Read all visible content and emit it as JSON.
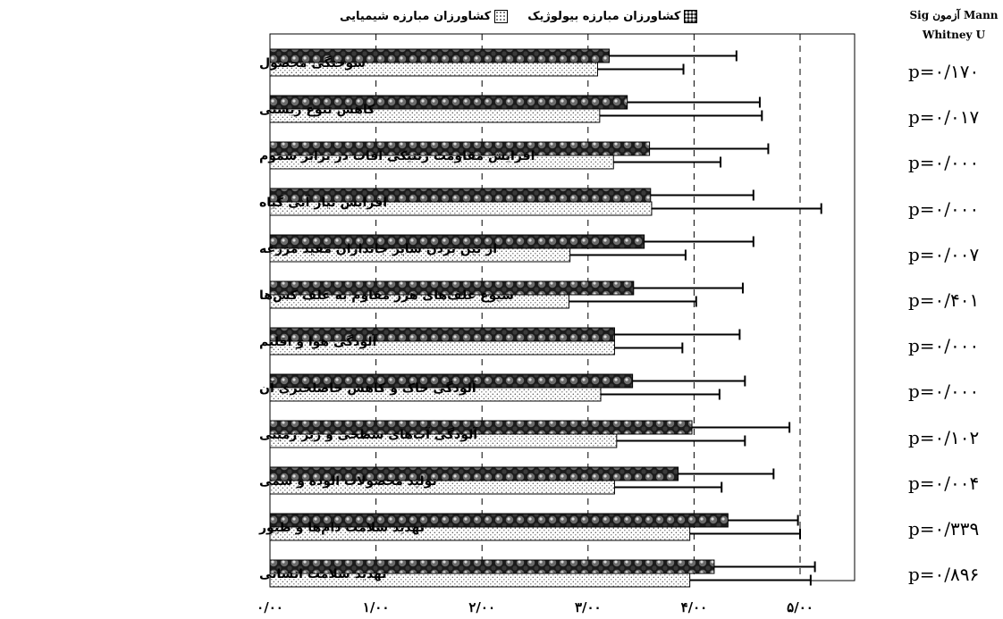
{
  "chart_data": {
    "type": "bar",
    "orientation": "horizontal",
    "categories": [
      "سوختگی محصول",
      "کاهش تنوع زیستی",
      "افزایش مقاومت ژنتیکی آفات در برابر سموم",
      "افزایش  نیاز آبی گیاه",
      "از بین بردن سایر جانداران مفید مزرعه",
      "شیوع علف‌های هرز مقاوم به علف کش‌ها",
      "آلودگی هوا و اقلیم",
      "آلودگی خاک و کاهش حاصلخیزی آن",
      "آلودگی آب‌های سطحی و زیر زمینی",
      "تولید محصولات الوده و سمی",
      "تهدید سلامت دام‌ها و طیور",
      "تهدید سلامت انسانی"
    ],
    "series": [
      {
        "name": "کشاورزان مبارزه بیولوژیک",
        "color": "#1b1b1b",
        "pattern": "dark-dotted",
        "values": [
          3.2,
          3.37,
          3.58,
          3.59,
          3.53,
          3.43,
          3.25,
          3.42,
          3.98,
          3.85,
          4.32,
          4.19
        ],
        "error_ends": [
          4.4,
          4.62,
          4.7,
          4.56,
          4.56,
          4.46,
          4.43,
          4.48,
          4.9,
          4.75,
          4.98,
          5.14
        ]
      },
      {
        "name": "کشاورزان مبارزه شیمیایی",
        "color": "#ffffff",
        "pattern": "light-dotted",
        "values": [
          3.09,
          3.11,
          3.24,
          3.6,
          2.83,
          2.82,
          3.25,
          3.12,
          3.27,
          3.25,
          3.96,
          3.96
        ],
        "error_ends": [
          3.9,
          4.64,
          4.25,
          5.2,
          3.92,
          4.02,
          3.89,
          4.24,
          4.48,
          4.26,
          5.0,
          5.1
        ]
      }
    ],
    "x_ticks": [
      "۰/۰۰",
      "۱/۰۰",
      "۲/۰۰",
      "۳/۰۰",
      "۴/۰۰",
      "۵/۰۰"
    ],
    "xlim": [
      0,
      5.5
    ],
    "grid": "vertical-dashed",
    "legend_position": "top",
    "sig_header_line1": "Sig آزمون  Mann",
    "sig_header_line2": "Whitney U",
    "p_values": [
      "p=۰/۱۷۰",
      "p=۰/۰۱۷",
      "p=۰/۰۰۰",
      "p=۰/۰۰۰",
      "p=۰/۰۰۷",
      "p=۰/۴۰۱",
      "p=۰/۰۰۰",
      "p=۰/۰۰۰",
      "p=۰/۱۰۲",
      "p=۰/۰۰۴",
      "p=۰/۳۳۹",
      "p=۰/۸۹۶"
    ]
  }
}
